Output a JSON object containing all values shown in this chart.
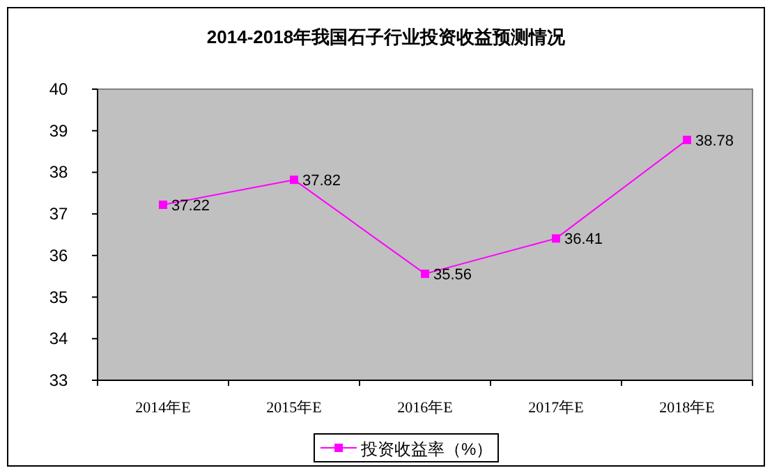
{
  "chart_data": {
    "type": "line",
    "title": "2014-2018年我国石子行业投资收益预测情况",
    "categories": [
      "2014年E",
      "2015年E",
      "2016年E",
      "2017年E",
      "2018年E"
    ],
    "series": [
      {
        "name": "投资收益率（%）",
        "color": "#ff00ff",
        "values": [
          37.22,
          37.82,
          35.56,
          36.41,
          38.78
        ]
      }
    ],
    "ylim": [
      33,
      40
    ],
    "yticks": [
      33,
      34,
      35,
      36,
      37,
      38,
      39,
      40
    ],
    "data_labels": true,
    "marker": "square",
    "line_style": "solid",
    "grid": false,
    "legend": "bottom"
  }
}
